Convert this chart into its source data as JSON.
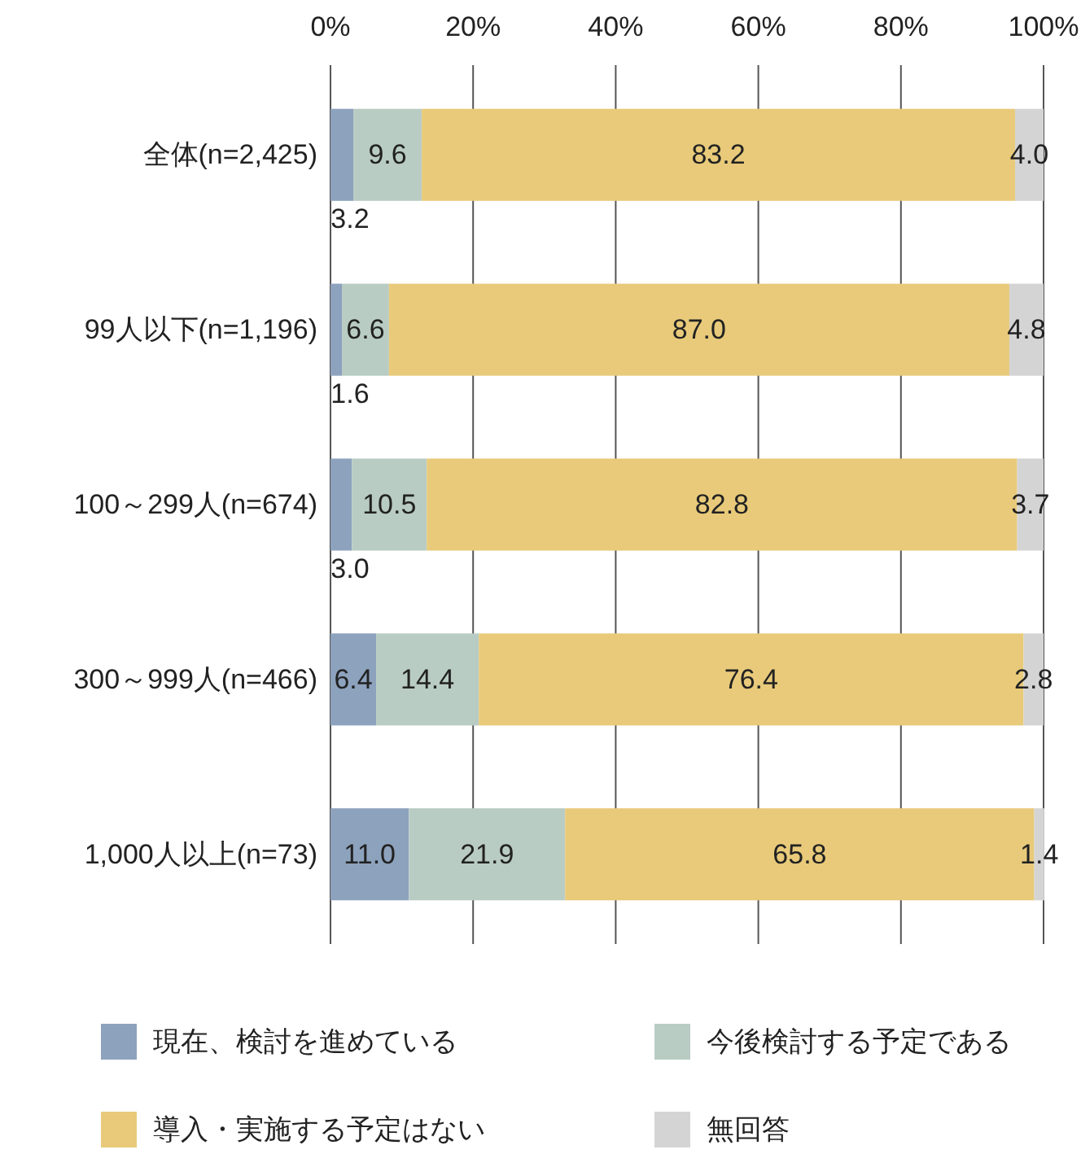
{
  "chart_data": {
    "type": "bar",
    "orientation": "horizontal",
    "stacked": true,
    "categories": [
      "全体(n=2,425)",
      "99人以下(n=1,196)",
      "100～299人(n=674)",
      "300～999人(n=466)",
      "1,000人以上(n=73)"
    ],
    "series": [
      {
        "name": "現在、検討を進めている",
        "color": "#8da2bd",
        "values": [
          3.2,
          1.6,
          3.0,
          6.4,
          11.0
        ],
        "value_labels": [
          "3.2",
          "1.6",
          "3.0",
          "6.4",
          "11.0"
        ]
      },
      {
        "name": "今後検討する予定である",
        "color": "#b9ccc4",
        "values": [
          9.6,
          6.6,
          10.5,
          14.4,
          21.9
        ],
        "value_labels": [
          "9.6",
          "6.6",
          "10.5",
          "14.4",
          "21.9"
        ]
      },
      {
        "name": "導入・実施する予定はない",
        "color": "#e8ca7a",
        "values": [
          83.2,
          87.0,
          82.8,
          76.4,
          65.8
        ],
        "value_labels": [
          "83.2",
          "87.0",
          "82.8",
          "76.4",
          "65.8"
        ]
      },
      {
        "name": "無回答",
        "color": "#d4d4d4",
        "values": [
          4.0,
          4.8,
          3.7,
          2.8,
          1.4
        ],
        "value_labels": [
          "4.0",
          "4.8",
          "3.7",
          "2.8",
          "1.4"
        ]
      }
    ],
    "xlim": [
      0,
      100
    ],
    "xticks": [
      {
        "value": 0,
        "label": "0%"
      },
      {
        "value": 20,
        "label": "20%"
      },
      {
        "value": 40,
        "label": "40%"
      },
      {
        "value": 60,
        "label": "60%"
      },
      {
        "value": 80,
        "label": "80%"
      },
      {
        "value": 100,
        "label": "100%"
      }
    ],
    "grid": "x",
    "legend": "bottom"
  }
}
